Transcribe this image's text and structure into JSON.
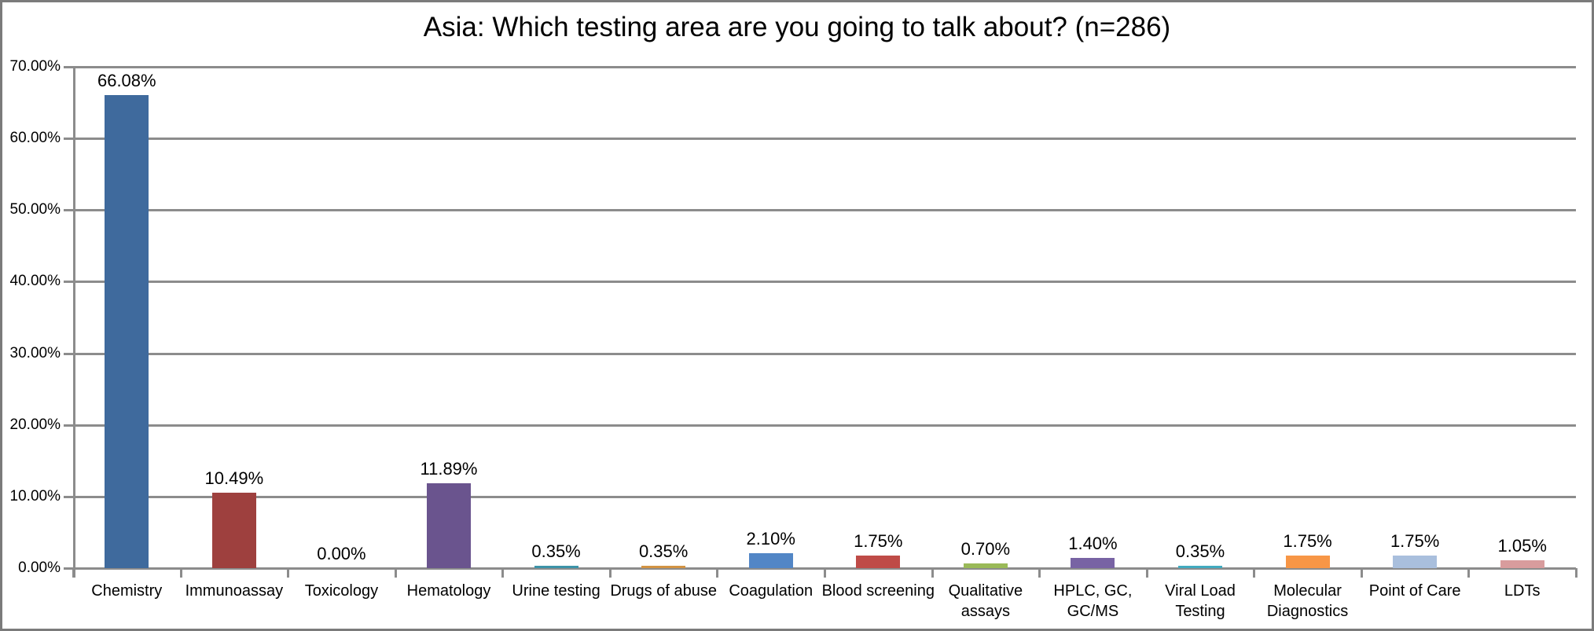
{
  "chart_data": {
    "type": "bar",
    "title": "Asia: Which testing area are you going to talk about? (n=286)",
    "categories": [
      "Chemistry",
      "Immunoassay",
      "Toxicology",
      "Hematology",
      "Urine testing",
      "Drugs of abuse",
      "Coagulation",
      "Blood screening",
      "Qualitative assays",
      "HPLC, GC, GC/MS",
      "Viral Load Testing",
      "Molecular Diagnostics",
      "Point of Care",
      "LDTs"
    ],
    "values": [
      66.08,
      10.49,
      0.0,
      11.89,
      0.35,
      0.35,
      2.1,
      1.75,
      0.7,
      1.4,
      0.35,
      1.75,
      1.75,
      1.05
    ],
    "value_labels": [
      "66.08%",
      "10.49%",
      "0.00%",
      "11.89%",
      "0.35%",
      "0.35%",
      "2.10%",
      "1.75%",
      "0.70%",
      "1.40%",
      "0.35%",
      "1.75%",
      "1.75%",
      "1.05%"
    ],
    "bar_colors": [
      "#3F6A9D",
      "#9E403E",
      "#7E9B44",
      "#6A548E",
      "#3C93A8",
      "#D29343",
      "#5286C6",
      "#BF4B47",
      "#9ABA58",
      "#7863A4",
      "#41AABF",
      "#F79646",
      "#A9BFDD",
      "#D89C9D"
    ],
    "ylabel": "",
    "xlabel": "",
    "ylim": [
      0,
      70
    ],
    "ytick_step": 10,
    "ytick_labels": [
      "0.00%",
      "10.00%",
      "20.00%",
      "30.00%",
      "40.00%",
      "50.00%",
      "60.00%",
      "70.00%"
    ],
    "grid": true,
    "legend": "none",
    "axis_color": "#8C8C8C",
    "frame_border_color": "#7B7B7B"
  }
}
